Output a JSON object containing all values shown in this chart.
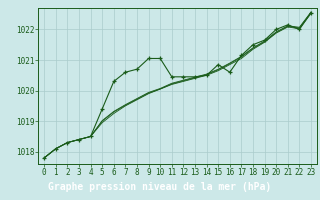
{
  "title": "Graphe pression niveau de la mer (hPa)",
  "bg_color": "#cce8e8",
  "grid_color": "#aacccc",
  "line_color": "#1a5c1a",
  "label_bg": "#2d6e2d",
  "x_labels": [
    "0",
    "1",
    "2",
    "3",
    "4",
    "5",
    "6",
    "7",
    "8",
    "9",
    "10",
    "11",
    "12",
    "13",
    "14",
    "15",
    "16",
    "17",
    "18",
    "19",
    "20",
    "21",
    "22",
    "23"
  ],
  "ylim": [
    1017.6,
    1022.7
  ],
  "yticks": [
    1018,
    1019,
    1020,
    1021,
    1022
  ],
  "smooth1": [
    1017.8,
    1018.1,
    1018.3,
    1018.4,
    1018.5,
    1018.95,
    1019.25,
    1019.5,
    1019.7,
    1019.9,
    1020.05,
    1020.2,
    1020.3,
    1020.4,
    1020.5,
    1020.65,
    1020.85,
    1021.05,
    1021.35,
    1021.58,
    1021.88,
    1022.08,
    1022.02,
    1022.52
  ],
  "smooth2": [
    1017.8,
    1018.1,
    1018.3,
    1018.4,
    1018.5,
    1019.0,
    1019.3,
    1019.52,
    1019.72,
    1019.92,
    1020.05,
    1020.22,
    1020.32,
    1020.42,
    1020.52,
    1020.68,
    1020.88,
    1021.1,
    1021.38,
    1021.6,
    1021.9,
    1022.1,
    1022.05,
    1022.55
  ],
  "smooth3": [
    1017.8,
    1018.1,
    1018.3,
    1018.4,
    1018.5,
    1019.02,
    1019.32,
    1019.54,
    1019.74,
    1019.94,
    1020.07,
    1020.24,
    1020.34,
    1020.44,
    1020.54,
    1020.7,
    1020.9,
    1021.12,
    1021.4,
    1021.62,
    1021.92,
    1022.12,
    1022.07,
    1022.57
  ],
  "main_series": [
    1017.8,
    1018.1,
    1018.3,
    1018.4,
    1018.5,
    1019.4,
    1020.3,
    1020.6,
    1020.7,
    1021.05,
    1021.05,
    1020.45,
    1020.45,
    1020.45,
    1020.5,
    1020.85,
    1020.6,
    1021.15,
    1021.5,
    1021.65,
    1022.0,
    1022.15,
    1022.0,
    1022.55
  ],
  "title_fontsize": 7,
  "tick_fontsize": 5.5
}
